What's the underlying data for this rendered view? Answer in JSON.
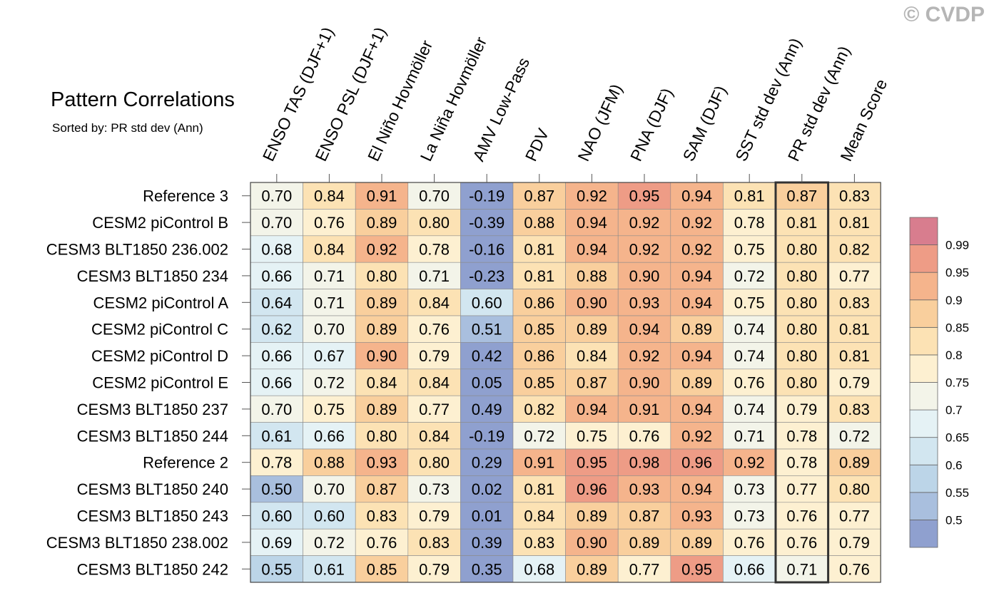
{
  "watermark": "© CVDP",
  "chart_data": {
    "type": "heatmap",
    "title": "Pattern Correlations",
    "subtitle": "Sorted by: PR std dev (Ann)",
    "columns": [
      "ENSO TAS (DJF+1)",
      "ENSO PSL (DJF+1)",
      "El Niño Hovmöller",
      "La Niña Hovmöller",
      "AMV Low-Pass",
      "PDV",
      "NAO (JFM)",
      "PNA (DJF)",
      "SAM (DJF)",
      "SST std dev (Ann)",
      "PR std dev (Ann)",
      "Mean Score"
    ],
    "highlighted_column": "PR std dev (Ann)",
    "rows": [
      {
        "name": "Reference 3",
        "values": [
          0.7,
          0.84,
          0.91,
          0.7,
          -0.19,
          0.87,
          0.92,
          0.95,
          0.94,
          0.81,
          0.87,
          0.83
        ]
      },
      {
        "name": "CESM2 piControl B",
        "values": [
          0.7,
          0.76,
          0.89,
          0.8,
          -0.39,
          0.88,
          0.94,
          0.92,
          0.92,
          0.78,
          0.81,
          0.81
        ]
      },
      {
        "name": "CESM3 BLT1850 236.002",
        "values": [
          0.68,
          0.84,
          0.92,
          0.78,
          -0.16,
          0.81,
          0.94,
          0.92,
          0.92,
          0.75,
          0.8,
          0.82
        ]
      },
      {
        "name": "CESM3 BLT1850 234",
        "values": [
          0.66,
          0.71,
          0.8,
          0.71,
          -0.23,
          0.81,
          0.88,
          0.9,
          0.94,
          0.72,
          0.8,
          0.77
        ]
      },
      {
        "name": "CESM2 piControl A",
        "values": [
          0.64,
          0.71,
          0.89,
          0.84,
          0.6,
          0.86,
          0.9,
          0.93,
          0.94,
          0.75,
          0.8,
          0.83
        ]
      },
      {
        "name": "CESM2 piControl C",
        "values": [
          0.62,
          0.7,
          0.89,
          0.76,
          0.51,
          0.85,
          0.89,
          0.94,
          0.89,
          0.74,
          0.8,
          0.81
        ]
      },
      {
        "name": "CESM2 piControl D",
        "values": [
          0.66,
          0.67,
          0.9,
          0.79,
          0.42,
          0.86,
          0.84,
          0.92,
          0.94,
          0.74,
          0.8,
          0.81
        ]
      },
      {
        "name": "CESM2 piControl E",
        "values": [
          0.66,
          0.72,
          0.84,
          0.84,
          0.05,
          0.85,
          0.87,
          0.9,
          0.89,
          0.76,
          0.8,
          0.79
        ]
      },
      {
        "name": "CESM3 BLT1850 237",
        "values": [
          0.7,
          0.75,
          0.89,
          0.77,
          0.49,
          0.82,
          0.94,
          0.91,
          0.94,
          0.74,
          0.79,
          0.83
        ]
      },
      {
        "name": "CESM3 BLT1850 244",
        "values": [
          0.61,
          0.66,
          0.8,
          0.84,
          -0.19,
          0.72,
          0.75,
          0.76,
          0.92,
          0.71,
          0.78,
          0.72
        ]
      },
      {
        "name": "Reference 2",
        "values": [
          0.78,
          0.88,
          0.93,
          0.8,
          0.29,
          0.91,
          0.95,
          0.98,
          0.96,
          0.92,
          0.78,
          0.89
        ]
      },
      {
        "name": "CESM3 BLT1850 240",
        "values": [
          0.5,
          0.7,
          0.87,
          0.73,
          0.02,
          0.81,
          0.96,
          0.93,
          0.94,
          0.73,
          0.77,
          0.8
        ]
      },
      {
        "name": "CESM3 BLT1850 243",
        "values": [
          0.6,
          0.6,
          0.83,
          0.79,
          0.01,
          0.84,
          0.89,
          0.87,
          0.93,
          0.73,
          0.76,
          0.77
        ]
      },
      {
        "name": "CESM3 BLT1850 238.002",
        "values": [
          0.69,
          0.72,
          0.76,
          0.83,
          0.39,
          0.83,
          0.9,
          0.89,
          0.89,
          0.76,
          0.76,
          0.79
        ]
      },
      {
        "name": "CESM3 BLT1850 242",
        "values": [
          0.55,
          0.61,
          0.85,
          0.79,
          0.35,
          0.68,
          0.89,
          0.77,
          0.95,
          0.66,
          0.71,
          0.76
        ]
      }
    ],
    "colorbar": {
      "levels": [
        "0.99",
        "0.95",
        "0.9",
        "0.85",
        "0.8",
        "0.75",
        "0.7",
        "0.65",
        "0.6",
        "0.55",
        "0.5"
      ],
      "colors": [
        "#8fa0cf",
        "#a9bfde",
        "#bcd5e8",
        "#d2e6f0",
        "#e5f2f5",
        "#f3f4e9",
        "#fdf0d1",
        "#fce2b4",
        "#f9cf9d",
        "#f5b48c",
        "#ee9c86",
        "#d87d8e"
      ]
    }
  }
}
